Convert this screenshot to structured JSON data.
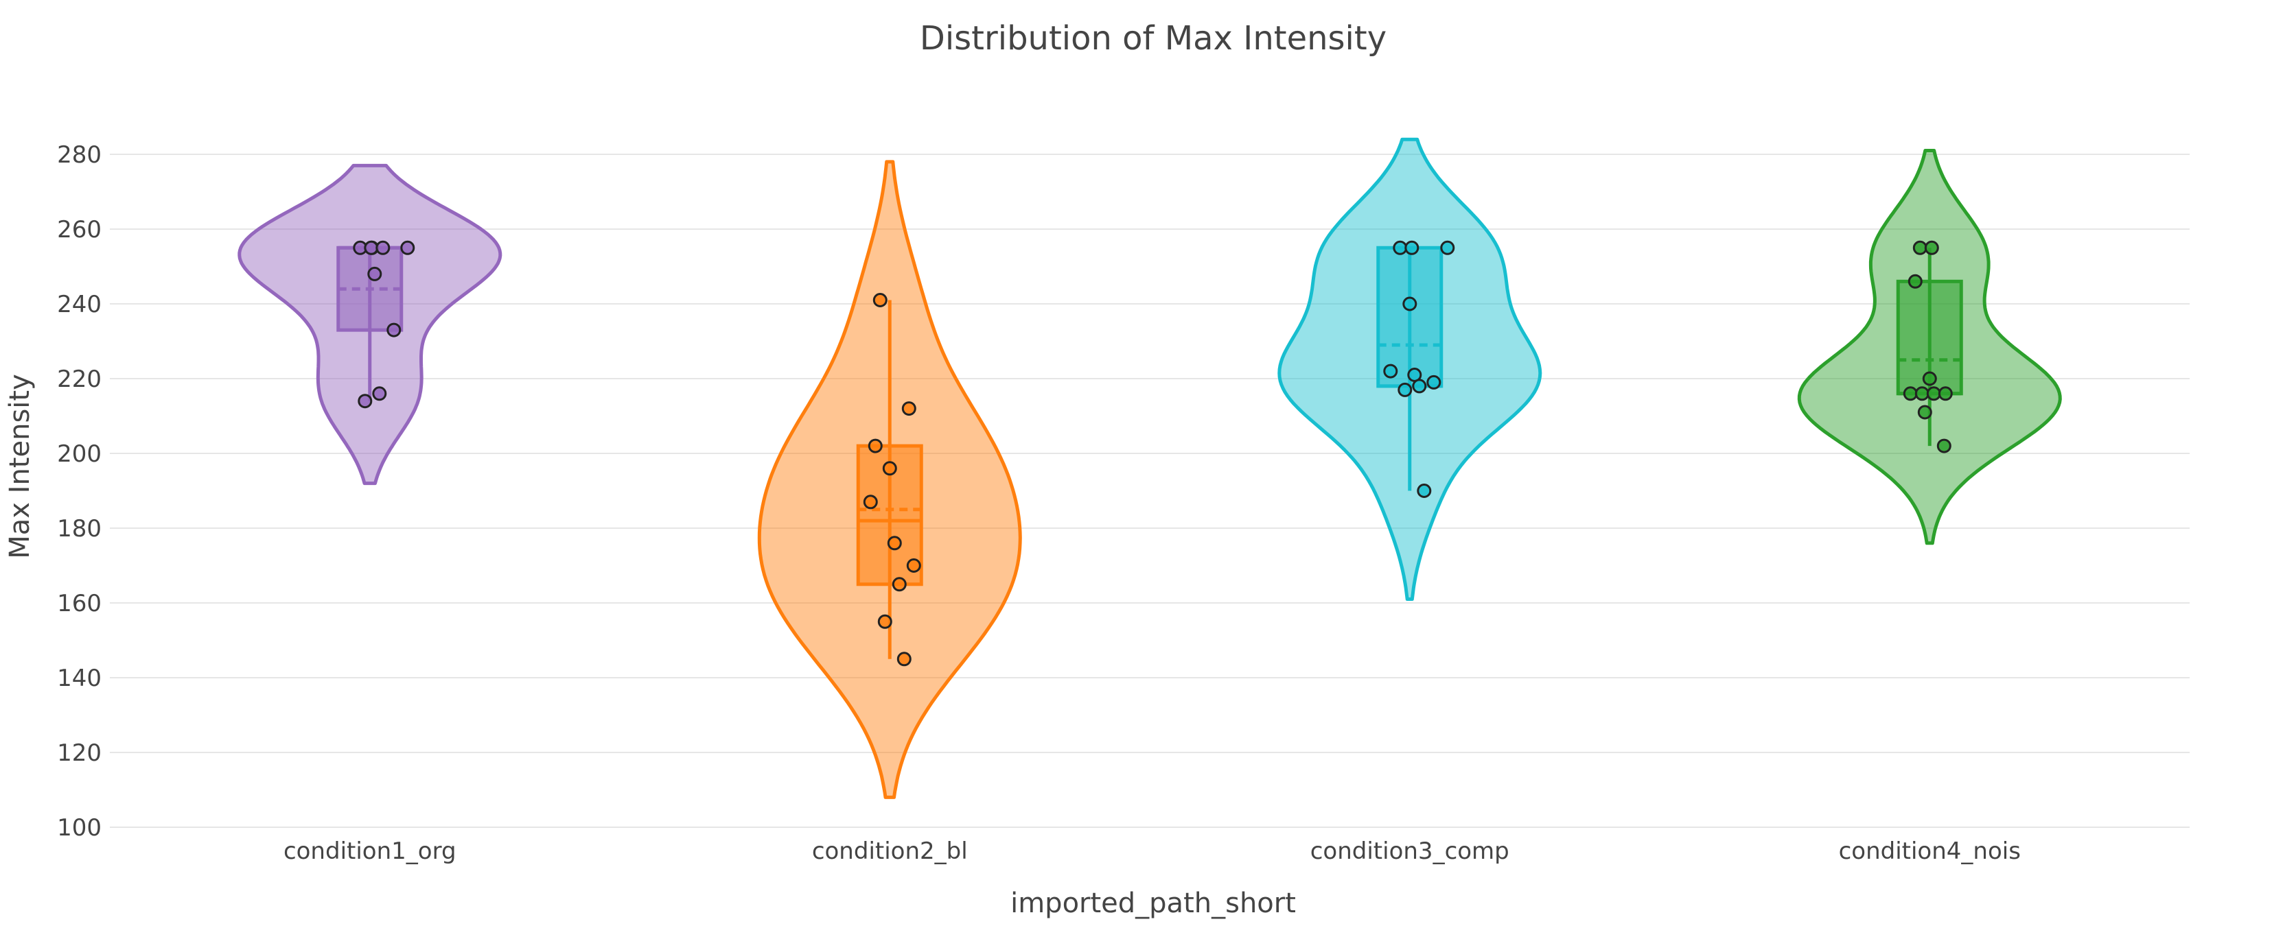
{
  "chart_data": {
    "type": "violin",
    "title": "Distribution of Max Intensity",
    "xlabel": "imported_path_short",
    "ylabel": "Max Intensity",
    "ylim": [
      100,
      285
    ],
    "yticks": [
      100,
      120,
      140,
      160,
      180,
      200,
      220,
      240,
      260,
      280
    ],
    "grid": true,
    "categories": [
      "condition1_org",
      "condition2_bl",
      "condition3_comp",
      "condition4_nois"
    ],
    "series": [
      {
        "color": "#9467bd",
        "kde_range": [
          192,
          277
        ],
        "kde_peak": 255,
        "box": {
          "q1": 233,
          "median": 255,
          "q3": 255,
          "mean": 244,
          "whisker_low": 214,
          "whisker_high": 255
        },
        "points": [
          255,
          255,
          255,
          255,
          255,
          248,
          233,
          216,
          214
        ]
      },
      {
        "color": "#ff7f0e",
        "kde_range": [
          108,
          278
        ],
        "kde_peak": 178,
        "box": {
          "q1": 165,
          "median": 182,
          "q3": 202,
          "mean": 185,
          "whisker_low": 145,
          "whisker_high": 241
        },
        "points": [
          241,
          212,
          202,
          196,
          187,
          176,
          170,
          165,
          155,
          145
        ]
      },
      {
        "color": "#17becf",
        "kde_range": [
          161,
          284
        ],
        "kde_peak": 222,
        "box": {
          "q1": 218,
          "median": 218,
          "q3": 255,
          "mean": 229,
          "whisker_low": 190,
          "whisker_high": 255
        },
        "points": [
          255,
          255,
          255,
          240,
          222,
          221,
          219,
          218,
          217,
          190
        ]
      },
      {
        "color": "#2ca02c",
        "kde_range": [
          176,
          281
        ],
        "kde_peak": 216,
        "box": {
          "q1": 216,
          "median": 216,
          "q3": 246,
          "mean": 225,
          "whisker_low": 202,
          "whisker_high": 255
        },
        "points": [
          255,
          255,
          246,
          220,
          216,
          216,
          216,
          216,
          211,
          202
        ]
      }
    ]
  }
}
